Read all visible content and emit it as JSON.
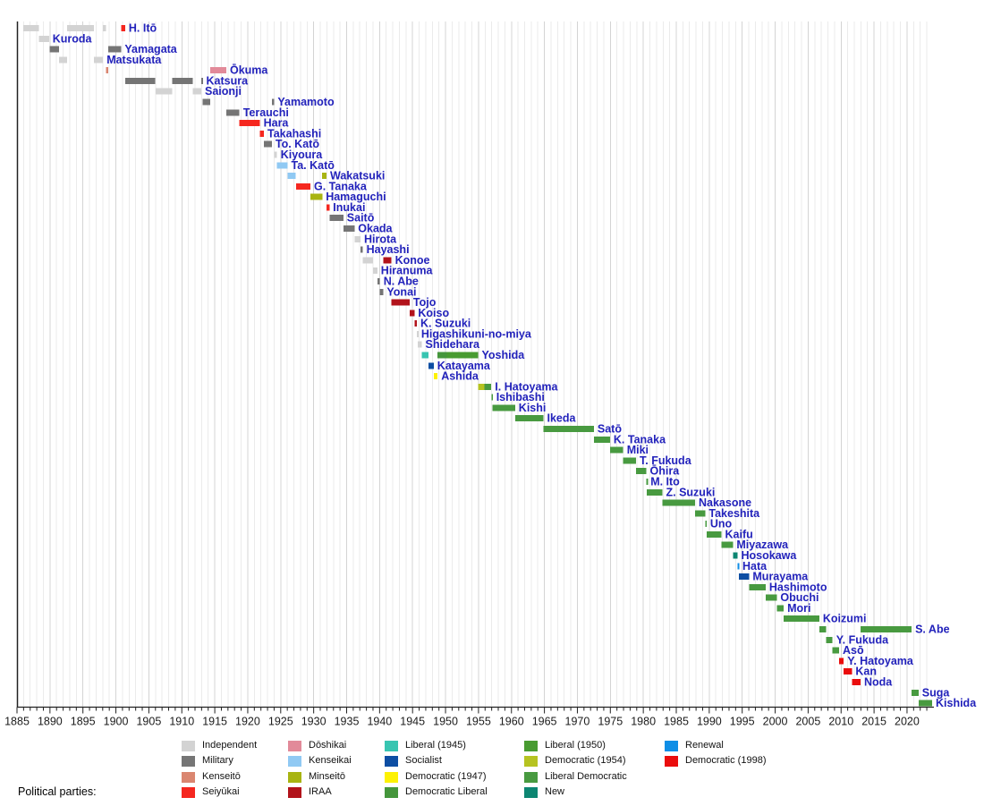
{
  "chart_data": {
    "type": "bar",
    "variant": "gantt-timeline",
    "description": "Timeline of Prime Ministers of Japan, terms colored by political party",
    "axis": {
      "xlim": [
        1885,
        2023.8
      ],
      "major_tick_step": 5,
      "minor_tick_step": 1,
      "tick_labels": [
        "1885",
        "1890",
        "1895",
        "1900",
        "1905",
        "1910",
        "1915",
        "1920",
        "1925",
        "1930",
        "1935",
        "1940",
        "1945",
        "1950",
        "1955",
        "1960",
        "1965",
        "1970",
        "1975",
        "1980",
        "1985",
        "1990",
        "1995",
        "2000",
        "2005",
        "2010",
        "2015",
        "2020"
      ]
    },
    "label_color": "#2222bb",
    "parties": {
      "independent": {
        "label": "Independent",
        "color": "#d3d3d3"
      },
      "military": {
        "label": "Military",
        "color": "#757575"
      },
      "kenseito": {
        "label": "Kenseitō",
        "color": "#da8670"
      },
      "seiyukai": {
        "label": "Seiyūkai",
        "color": "#f5271f"
      },
      "doshikai": {
        "label": "Dōshikai",
        "color": "#e28a99"
      },
      "kenseikai": {
        "label": "Kenseikai",
        "color": "#90c9f3"
      },
      "minseito": {
        "label": "Minseitō",
        "color": "#a8b412"
      },
      "iraa": {
        "label": "IRAA",
        "color": "#b2131b"
      },
      "liberal1945": {
        "label": "Liberal (1945)",
        "color": "#38c5b1"
      },
      "socialist": {
        "label": "Socialist",
        "color": "#0d4ea3"
      },
      "democratic1947": {
        "label": "Democratic (1947)",
        "color": "#fdf103"
      },
      "democratic_liberal": {
        "label": "Democratic Liberal",
        "color": "#45963c"
      },
      "liberal1950": {
        "label": "Liberal (1950)",
        "color": "#489b31"
      },
      "democratic1954": {
        "label": "Democratic (1954)",
        "color": "#b6c321"
      },
      "ldp": {
        "label": "Liberal Democratic",
        "color": "#489a40"
      },
      "new": {
        "label": "New",
        "color": "#0d8672"
      },
      "renewal": {
        "label": "Renewal",
        "color": "#0f8ee6"
      },
      "democratic1998": {
        "label": "Democratic (1998)",
        "color": "#ea0d0d"
      }
    },
    "legend": {
      "heading": "Political parties:",
      "columns": [
        [
          "independent",
          "military",
          "kenseito",
          "seiyukai"
        ],
        [
          "doshikai",
          "kenseikai",
          "minseito",
          "iraa"
        ],
        [
          "liberal1945",
          "socialist",
          "democratic1947",
          "democratic_liberal"
        ],
        [
          "liberal1950",
          "democratic1954",
          "ldp",
          "new"
        ],
        [
          "renewal",
          "democratic1998"
        ]
      ]
    },
    "prime_ministers": [
      {
        "name": "H. Itō",
        "terms": [
          [
            1885.95,
            1888.35,
            "independent"
          ],
          [
            1892.6,
            1896.65,
            "independent"
          ],
          [
            1898.05,
            1898.5,
            "independent"
          ],
          [
            1900.8,
            1901.4,
            "seiyukai"
          ]
        ]
      },
      {
        "name": "Kuroda",
        "terms": [
          [
            1888.35,
            1889.85,
            "independent"
          ]
        ]
      },
      {
        "name": "Yamagata",
        "terms": [
          [
            1889.95,
            1891.35,
            "military"
          ],
          [
            1898.85,
            1900.8,
            "military"
          ]
        ]
      },
      {
        "name": "Matsukata",
        "terms": [
          [
            1891.35,
            1892.6,
            "independent"
          ],
          [
            1896.7,
            1898.05,
            "independent"
          ]
        ]
      },
      {
        "name": "Ōkuma",
        "terms": [
          [
            1898.5,
            1898.85,
            "kenseito"
          ],
          [
            1914.3,
            1916.75,
            "doshikai"
          ]
        ]
      },
      {
        "name": "Katsura",
        "terms": [
          [
            1901.45,
            1906.0,
            "military"
          ],
          [
            1908.55,
            1911.65,
            "military"
          ],
          [
            1912.95,
            1913.15,
            "military"
          ]
        ]
      },
      {
        "name": "Saionji",
        "terms": [
          [
            1906.0,
            1908.55,
            "independent"
          ],
          [
            1911.65,
            1912.95,
            "independent"
          ]
        ]
      },
      {
        "name": "Yamamoto",
        "terms": [
          [
            1913.15,
            1914.3,
            "military"
          ],
          [
            1923.65,
            1924.0,
            "military"
          ]
        ]
      },
      {
        "name": "Terauchi",
        "terms": [
          [
            1916.75,
            1918.75,
            "military"
          ]
        ]
      },
      {
        "name": "Hara",
        "terms": [
          [
            1918.75,
            1921.85,
            "seiyukai"
          ]
        ]
      },
      {
        "name": "Takahashi",
        "terms": [
          [
            1921.85,
            1922.45,
            "seiyukai"
          ]
        ]
      },
      {
        "name": "To. Katō",
        "terms": [
          [
            1922.45,
            1923.65,
            "military"
          ]
        ]
      },
      {
        "name": "Kiyoura",
        "terms": [
          [
            1924.0,
            1924.45,
            "independent"
          ]
        ]
      },
      {
        "name": "Ta. Katō",
        "terms": [
          [
            1924.45,
            1926.05,
            "kenseikai"
          ]
        ]
      },
      {
        "name": "Wakatsuki",
        "terms": [
          [
            1926.05,
            1927.3,
            "kenseikai"
          ],
          [
            1931.3,
            1931.95,
            "minseito"
          ]
        ]
      },
      {
        "name": "G. Tanaka",
        "terms": [
          [
            1927.3,
            1929.5,
            "seiyukai"
          ]
        ]
      },
      {
        "name": "Hamaguchi",
        "terms": [
          [
            1929.5,
            1931.3,
            "minseito"
          ]
        ]
      },
      {
        "name": "Inukai",
        "terms": [
          [
            1931.95,
            1932.4,
            "seiyukai"
          ]
        ]
      },
      {
        "name": "Saitō",
        "terms": [
          [
            1932.4,
            1934.5,
            "military"
          ]
        ]
      },
      {
        "name": "Okada",
        "terms": [
          [
            1934.5,
            1936.2,
            "military"
          ]
        ]
      },
      {
        "name": "Hirota",
        "terms": [
          [
            1936.2,
            1937.1,
            "independent"
          ]
        ]
      },
      {
        "name": "Hayashi",
        "terms": [
          [
            1937.1,
            1937.45,
            "military"
          ]
        ]
      },
      {
        "name": "Konoe",
        "terms": [
          [
            1937.45,
            1939.0,
            "independent"
          ],
          [
            1940.55,
            1941.8,
            "iraa"
          ]
        ]
      },
      {
        "name": "Hiranuma",
        "terms": [
          [
            1939.0,
            1939.65,
            "independent"
          ]
        ]
      },
      {
        "name": "N. Abe",
        "terms": [
          [
            1939.65,
            1940.05,
            "military"
          ]
        ]
      },
      {
        "name": "Yonai",
        "terms": [
          [
            1940.05,
            1940.55,
            "military"
          ]
        ]
      },
      {
        "name": "Tojo",
        "terms": [
          [
            1941.8,
            1944.55,
            "iraa"
          ]
        ]
      },
      {
        "name": "Koiso",
        "terms": [
          [
            1944.55,
            1945.3,
            "iraa"
          ]
        ]
      },
      {
        "name": "K. Suzuki",
        "terms": [
          [
            1945.3,
            1945.65,
            "iraa"
          ]
        ]
      },
      {
        "name": "Higashikuni-no-miya",
        "terms": [
          [
            1945.65,
            1945.78,
            "independent"
          ]
        ]
      },
      {
        "name": "Shidehara",
        "terms": [
          [
            1945.78,
            1946.4,
            "independent"
          ]
        ]
      },
      {
        "name": "Yoshida",
        "terms": [
          [
            1946.4,
            1947.4,
            "liberal1945"
          ],
          [
            1948.8,
            1950.2,
            "democratic_liberal"
          ],
          [
            1950.2,
            1954.95,
            "liberal1950"
          ]
        ]
      },
      {
        "name": "Katayama",
        "terms": [
          [
            1947.4,
            1948.2,
            "socialist"
          ]
        ]
      },
      {
        "name": "Ashida",
        "terms": [
          [
            1948.2,
            1948.8,
            "democratic1947"
          ]
        ]
      },
      {
        "name": "I. Hatoyama",
        "terms": [
          [
            1954.95,
            1955.9,
            "democratic1954"
          ],
          [
            1955.9,
            1956.95,
            "ldp"
          ]
        ]
      },
      {
        "name": "Ishibashi",
        "terms": [
          [
            1956.95,
            1957.15,
            "ldp"
          ]
        ]
      },
      {
        "name": "Kishi",
        "terms": [
          [
            1957.15,
            1960.55,
            "ldp"
          ]
        ]
      },
      {
        "name": "Ikeda",
        "terms": [
          [
            1960.55,
            1964.85,
            "ldp"
          ]
        ]
      },
      {
        "name": "Satō",
        "terms": [
          [
            1964.85,
            1972.5,
            "ldp"
          ]
        ]
      },
      {
        "name": "K. Tanaka",
        "terms": [
          [
            1972.5,
            1974.95,
            "ldp"
          ]
        ]
      },
      {
        "name": "Miki",
        "terms": [
          [
            1974.95,
            1976.95,
            "ldp"
          ]
        ]
      },
      {
        "name": "T. Fukuda",
        "terms": [
          [
            1976.95,
            1978.9,
            "ldp"
          ]
        ]
      },
      {
        "name": "Ōhira",
        "terms": [
          [
            1978.9,
            1980.45,
            "ldp"
          ]
        ]
      },
      {
        "name": "M. Ito",
        "terms": [
          [
            1980.45,
            1980.55,
            "ldp"
          ]
        ]
      },
      {
        "name": "Z. Suzuki",
        "terms": [
          [
            1980.55,
            1982.9,
            "ldp"
          ]
        ]
      },
      {
        "name": "Nakasone",
        "terms": [
          [
            1982.9,
            1987.85,
            "ldp"
          ]
        ]
      },
      {
        "name": "Takeshita",
        "terms": [
          [
            1987.85,
            1989.4,
            "ldp"
          ]
        ]
      },
      {
        "name": "Uno",
        "terms": [
          [
            1989.4,
            1989.6,
            "ldp"
          ]
        ]
      },
      {
        "name": "Kaifu",
        "terms": [
          [
            1989.6,
            1991.85,
            "ldp"
          ]
        ]
      },
      {
        "name": "Miyazawa",
        "terms": [
          [
            1991.85,
            1993.6,
            "ldp"
          ]
        ]
      },
      {
        "name": "Hosokawa",
        "terms": [
          [
            1993.6,
            1994.3,
            "new"
          ]
        ]
      },
      {
        "name": "Hata",
        "terms": [
          [
            1994.3,
            1994.5,
            "renewal"
          ]
        ]
      },
      {
        "name": "Murayama",
        "terms": [
          [
            1994.5,
            1996.05,
            "socialist"
          ]
        ]
      },
      {
        "name": "Hashimoto",
        "terms": [
          [
            1996.05,
            1998.55,
            "ldp"
          ]
        ]
      },
      {
        "name": "Obuchi",
        "terms": [
          [
            1998.55,
            2000.25,
            "ldp"
          ]
        ]
      },
      {
        "name": "Mori",
        "terms": [
          [
            2000.25,
            2001.3,
            "ldp"
          ]
        ]
      },
      {
        "name": "Koizumi",
        "terms": [
          [
            2001.3,
            2006.7,
            "ldp"
          ]
        ]
      },
      {
        "name": "S. Abe",
        "terms": [
          [
            2006.7,
            2007.7,
            "ldp"
          ],
          [
            2012.95,
            2020.7,
            "ldp"
          ]
        ]
      },
      {
        "name": "Y. Fukuda",
        "terms": [
          [
            2007.7,
            2008.7,
            "ldp"
          ]
        ]
      },
      {
        "name": "Asō",
        "terms": [
          [
            2008.7,
            2009.7,
            "ldp"
          ]
        ]
      },
      {
        "name": "Y. Hatoyama",
        "terms": [
          [
            2009.7,
            2010.4,
            "democratic1998"
          ]
        ]
      },
      {
        "name": "Kan",
        "terms": [
          [
            2010.4,
            2011.65,
            "democratic1998"
          ]
        ]
      },
      {
        "name": "Noda",
        "terms": [
          [
            2011.65,
            2012.95,
            "democratic1998"
          ]
        ]
      },
      {
        "name": "Suga",
        "terms": [
          [
            2020.7,
            2021.75,
            "ldp"
          ]
        ]
      },
      {
        "name": "Kishida",
        "terms": [
          [
            2021.75,
            2023.8,
            "ldp"
          ]
        ]
      }
    ]
  }
}
